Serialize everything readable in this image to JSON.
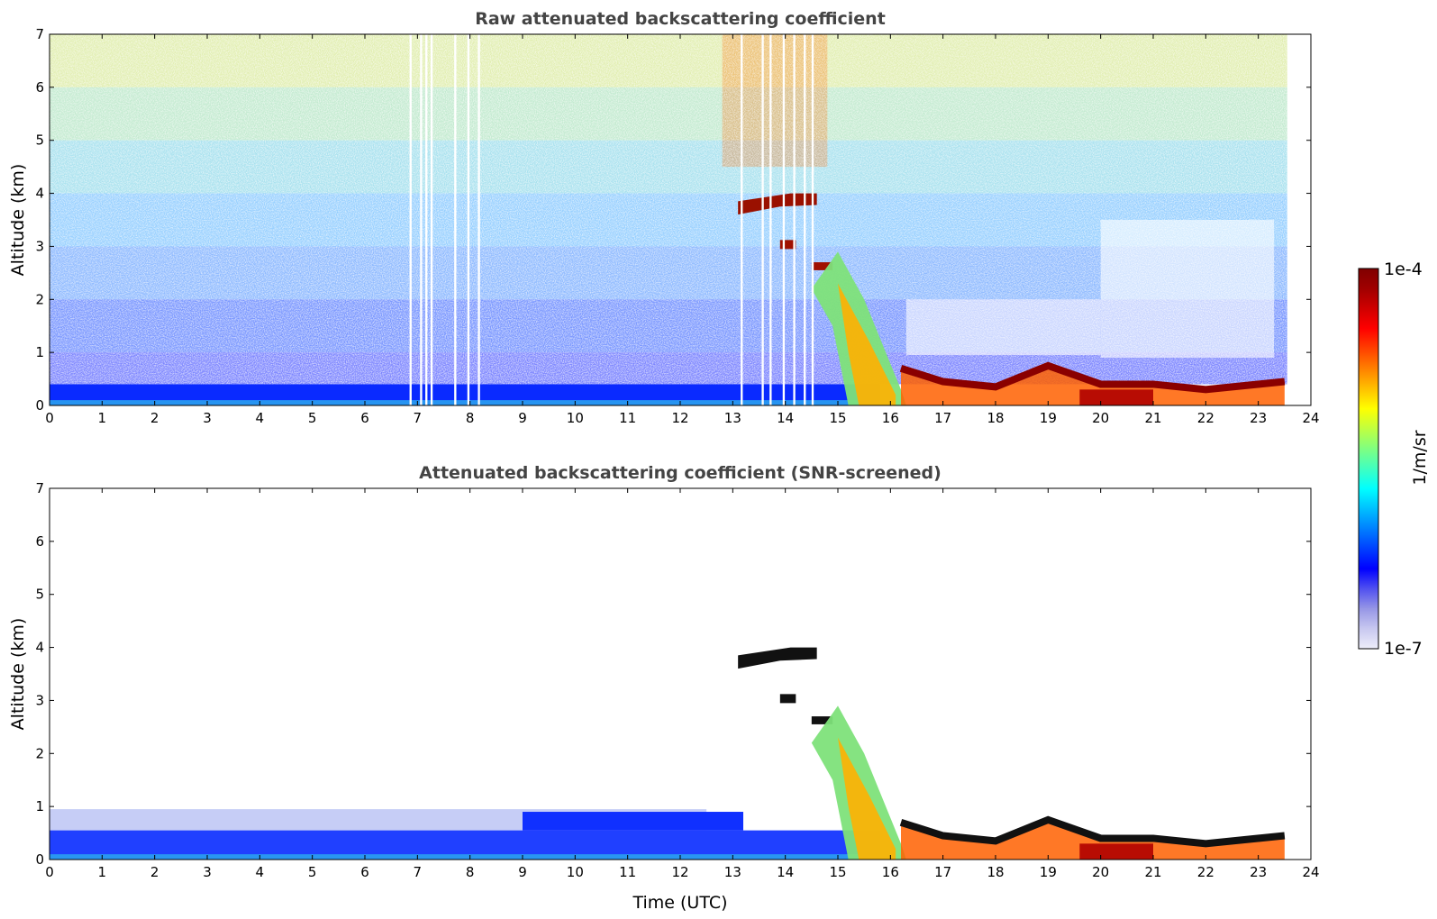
{
  "chart_data": [
    {
      "type": "heatmap",
      "title": "Raw attenuated backscattering coefficient",
      "xlabel": "",
      "ylabel": "Altitude (km)",
      "xlim": [
        0,
        24
      ],
      "ylim": [
        0,
        7
      ],
      "xticks": [
        0,
        1,
        2,
        3,
        4,
        5,
        6,
        7,
        8,
        9,
        10,
        11,
        12,
        13,
        14,
        15,
        16,
        17,
        18,
        19,
        20,
        21,
        22,
        23,
        24
      ],
      "yticks": [
        0,
        1,
        2,
        3,
        4,
        5,
        6,
        7
      ],
      "data_gaps_utc": [
        6.85,
        7.05,
        7.15,
        7.25,
        7.7,
        7.95,
        8.15,
        13.15,
        13.55,
        13.7,
        13.95,
        14.15,
        14.35,
        14.5
      ],
      "features": [
        {
          "name": "surface aerosol layer",
          "time": [
            0,
            15.8
          ],
          "alt_km": [
            0,
            0.4
          ]
        },
        {
          "name": "elevated cloud layer",
          "time": [
            13.1,
            14.6
          ],
          "alt_km": [
            3.6,
            4.0
          ]
        },
        {
          "name": "small cloud patch",
          "time": [
            13.9,
            14.2
          ],
          "alt_km": [
            3.0,
            3.1
          ]
        },
        {
          "name": "descending cloud/precipitation",
          "time": [
            14.5,
            16.3
          ],
          "alt_km": [
            0,
            2.9
          ]
        },
        {
          "name": "low cloud top",
          "time": [
            16.2,
            23.5
          ],
          "alt_km": [
            0.2,
            0.8
          ]
        }
      ]
    },
    {
      "type": "heatmap",
      "title": "Attenuated backscattering coefficient (SNR-screened)",
      "xlabel": "Time (UTC)",
      "ylabel": "Altitude (km)",
      "xlim": [
        0,
        24
      ],
      "ylim": [
        0,
        7
      ],
      "xticks": [
        0,
        1,
        2,
        3,
        4,
        5,
        6,
        7,
        8,
        9,
        10,
        11,
        12,
        13,
        14,
        15,
        16,
        17,
        18,
        19,
        20,
        21,
        22,
        23,
        24
      ],
      "yticks": [
        0,
        1,
        2,
        3,
        4,
        5,
        6,
        7
      ],
      "features": [
        {
          "name": "boundary layer aerosol",
          "time": [
            0,
            15.8
          ],
          "alt_km": [
            0,
            1.0
          ]
        },
        {
          "name": "elevated cloud layer",
          "time": [
            13.1,
            14.6
          ],
          "alt_km": [
            3.6,
            4.0
          ]
        },
        {
          "name": "descending cloud/precipitation",
          "time": [
            14.5,
            16.3
          ],
          "alt_km": [
            0,
            2.9
          ]
        },
        {
          "name": "low cloud top",
          "time": [
            16.2,
            23.5
          ],
          "alt_km": [
            0.2,
            1.0
          ]
        }
      ]
    }
  ],
  "colorbar": {
    "label": "1/m/sr",
    "min_label": "1e-7",
    "max_label": "1e-4",
    "colors": [
      "#eeeefa",
      "#c8c8f0",
      "#9696e6",
      "#5050f0",
      "#0000ff",
      "#0040ff",
      "#0080ff",
      "#00c0ff",
      "#00ffff",
      "#40ffc0",
      "#80ff80",
      "#c0ff40",
      "#ffff00",
      "#ffc000",
      "#ff8000",
      "#ff4000",
      "#ff0000",
      "#d00000",
      "#a00000",
      "#800000"
    ]
  }
}
